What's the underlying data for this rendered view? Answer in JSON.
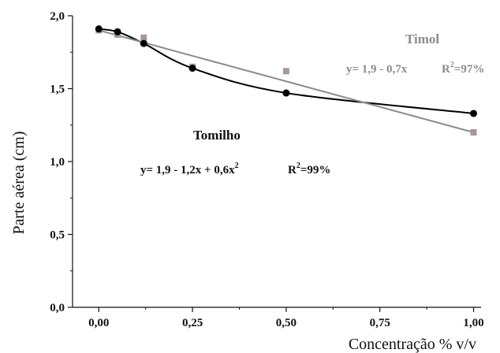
{
  "chart_data": {
    "type": "scatter",
    "title": "",
    "xlabel": "Concentração % v/v",
    "ylabel": "Parte aérea (cm)",
    "xlim": [
      -0.07,
      1.02
    ],
    "ylim": [
      0,
      2.0
    ],
    "x_ticks": [
      0,
      0.25,
      0.5,
      0.75,
      1.0
    ],
    "x_tick_labels": [
      "0,00",
      "0,25",
      "0,50",
      "0,75",
      "1,00"
    ],
    "y_ticks": [
      0,
      0.5,
      1.0,
      1.5,
      2.0
    ],
    "y_tick_labels": [
      "0,0",
      "0,5",
      "1,0",
      "1,5",
      "2,0"
    ],
    "grid": false,
    "series": [
      {
        "name": "Tomilho",
        "marker": "circle",
        "color": "#000000",
        "x": [
          0,
          0.05,
          0.12,
          0.25,
          0.5,
          1.0
        ],
        "y": [
          1.91,
          1.89,
          1.81,
          1.64,
          1.47,
          1.33
        ],
        "fit": {
          "type": "quadratic",
          "coefficients": [
            1.9,
            -1.2,
            0.6
          ]
        },
        "equation": "y= 1,9 - 1,2x + 0,6x",
        "eq_superscript": "2",
        "r2_prefix": "R",
        "r2_superscript": "2",
        "r2_value": "=99%"
      },
      {
        "name": "Timol",
        "marker": "square",
        "color": "#a8979c",
        "line_color": "#8c8c8c",
        "x": [
          0,
          0.05,
          0.12,
          0.25,
          0.5,
          1.0
        ],
        "y": [
          1.9,
          1.87,
          1.85,
          1.65,
          1.62,
          1.2
        ],
        "fit": {
          "type": "linear",
          "coefficients": [
            1.9,
            -0.7
          ]
        },
        "equation": "y= 1,9 - 0,7x",
        "r2_prefix": "R",
        "r2_superscript": "2",
        "r2_value": "=97%"
      }
    ]
  }
}
